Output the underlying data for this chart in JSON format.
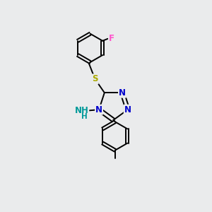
{
  "bg_color": "#eaebec",
  "bond_color": "#000000",
  "bond_width": 1.4,
  "figsize": [
    3.0,
    3.0
  ],
  "dpi": 100,
  "atom_colors": {
    "N": "#0000cc",
    "S": "#aaaa00",
    "F": "#ff55cc",
    "NH2": "#009999",
    "C": "#000000"
  },
  "font_size_atoms": 8.5,
  "xlim": [
    0,
    10
  ],
  "ylim": [
    0,
    10
  ]
}
